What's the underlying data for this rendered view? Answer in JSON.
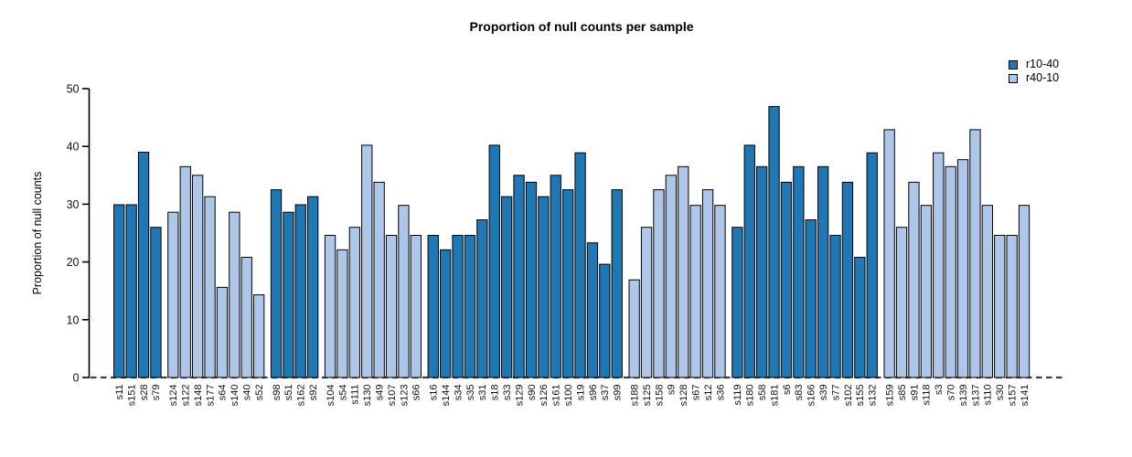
{
  "chart_data": {
    "type": "bar",
    "title": "Proportion of null counts per sample",
    "xlabel": "",
    "ylabel": "Proportion of null counts",
    "ylim": [
      0,
      50
    ],
    "yticks": [
      0,
      10,
      20,
      30,
      40,
      50
    ],
    "grid": false,
    "legend_position": "top-right",
    "baseline_style": "dashed",
    "bar_edge_color": "#000000",
    "series": [
      {
        "name": "r10-40",
        "color": "#1f77b4"
      },
      {
        "name": "r40-10",
        "color": "#aec7e8"
      }
    ],
    "groups": [
      {
        "series": "r10-40",
        "samples": [
          "s11",
          "s151",
          "s28",
          "s79"
        ],
        "values": [
          29.9,
          29.9,
          39.0,
          26.0
        ]
      },
      {
        "series": "r40-10",
        "samples": [
          "s124",
          "s122",
          "s148",
          "s177",
          "s64",
          "s140",
          "s40",
          "s52"
        ],
        "values": [
          28.6,
          36.5,
          35.0,
          31.3,
          15.6,
          28.6,
          20.8,
          14.3
        ]
      },
      {
        "series": "r10-40",
        "samples": [
          "s98",
          "s51",
          "s162",
          "s92"
        ],
        "values": [
          32.5,
          28.6,
          29.9,
          31.3
        ]
      },
      {
        "series": "r40-10",
        "samples": [
          "s104",
          "s54",
          "s111",
          "s130",
          "s49",
          "s107",
          "s123",
          "s66"
        ],
        "values": [
          24.6,
          22.1,
          26.0,
          40.2,
          33.8,
          24.6,
          29.8,
          24.6
        ]
      },
      {
        "series": "r10-40",
        "samples": [
          "s16",
          "s144",
          "s34",
          "s35",
          "s31",
          "s18",
          "s33",
          "s129",
          "s90",
          "s126",
          "s161",
          "s100",
          "s19",
          "s96",
          "s37",
          "s99"
        ],
        "values": [
          24.6,
          22.1,
          24.6,
          24.6,
          27.3,
          40.2,
          31.3,
          35.0,
          33.8,
          31.3,
          35.0,
          32.5,
          38.9,
          23.3,
          19.6,
          32.5
        ]
      },
      {
        "series": "r40-10",
        "samples": [
          "s188",
          "s125",
          "s158",
          "s9",
          "s128",
          "s67",
          "s12",
          "s36"
        ],
        "values": [
          16.9,
          26.0,
          32.5,
          35.0,
          36.5,
          29.8,
          32.5,
          29.8
        ]
      },
      {
        "series": "r10-40",
        "samples": [
          "s119",
          "s180",
          "s58",
          "s181",
          "s6",
          "s83",
          "s166",
          "s39",
          "s77",
          "s102",
          "s155",
          "s132"
        ],
        "values": [
          26.0,
          40.2,
          36.5,
          46.9,
          33.8,
          36.5,
          27.3,
          36.5,
          24.6,
          33.8,
          20.8,
          38.9
        ]
      },
      {
        "series": "r40-10",
        "samples": [
          "s159",
          "s85",
          "s91",
          "s118",
          "s3",
          "s70",
          "s139",
          "s137",
          "s110",
          "s30",
          "s157",
          "s141"
        ],
        "values": [
          42.9,
          26.0,
          33.8,
          29.8,
          38.9,
          36.5,
          37.7,
          42.9,
          29.8,
          24.6,
          24.6,
          29.8
        ]
      }
    ]
  }
}
